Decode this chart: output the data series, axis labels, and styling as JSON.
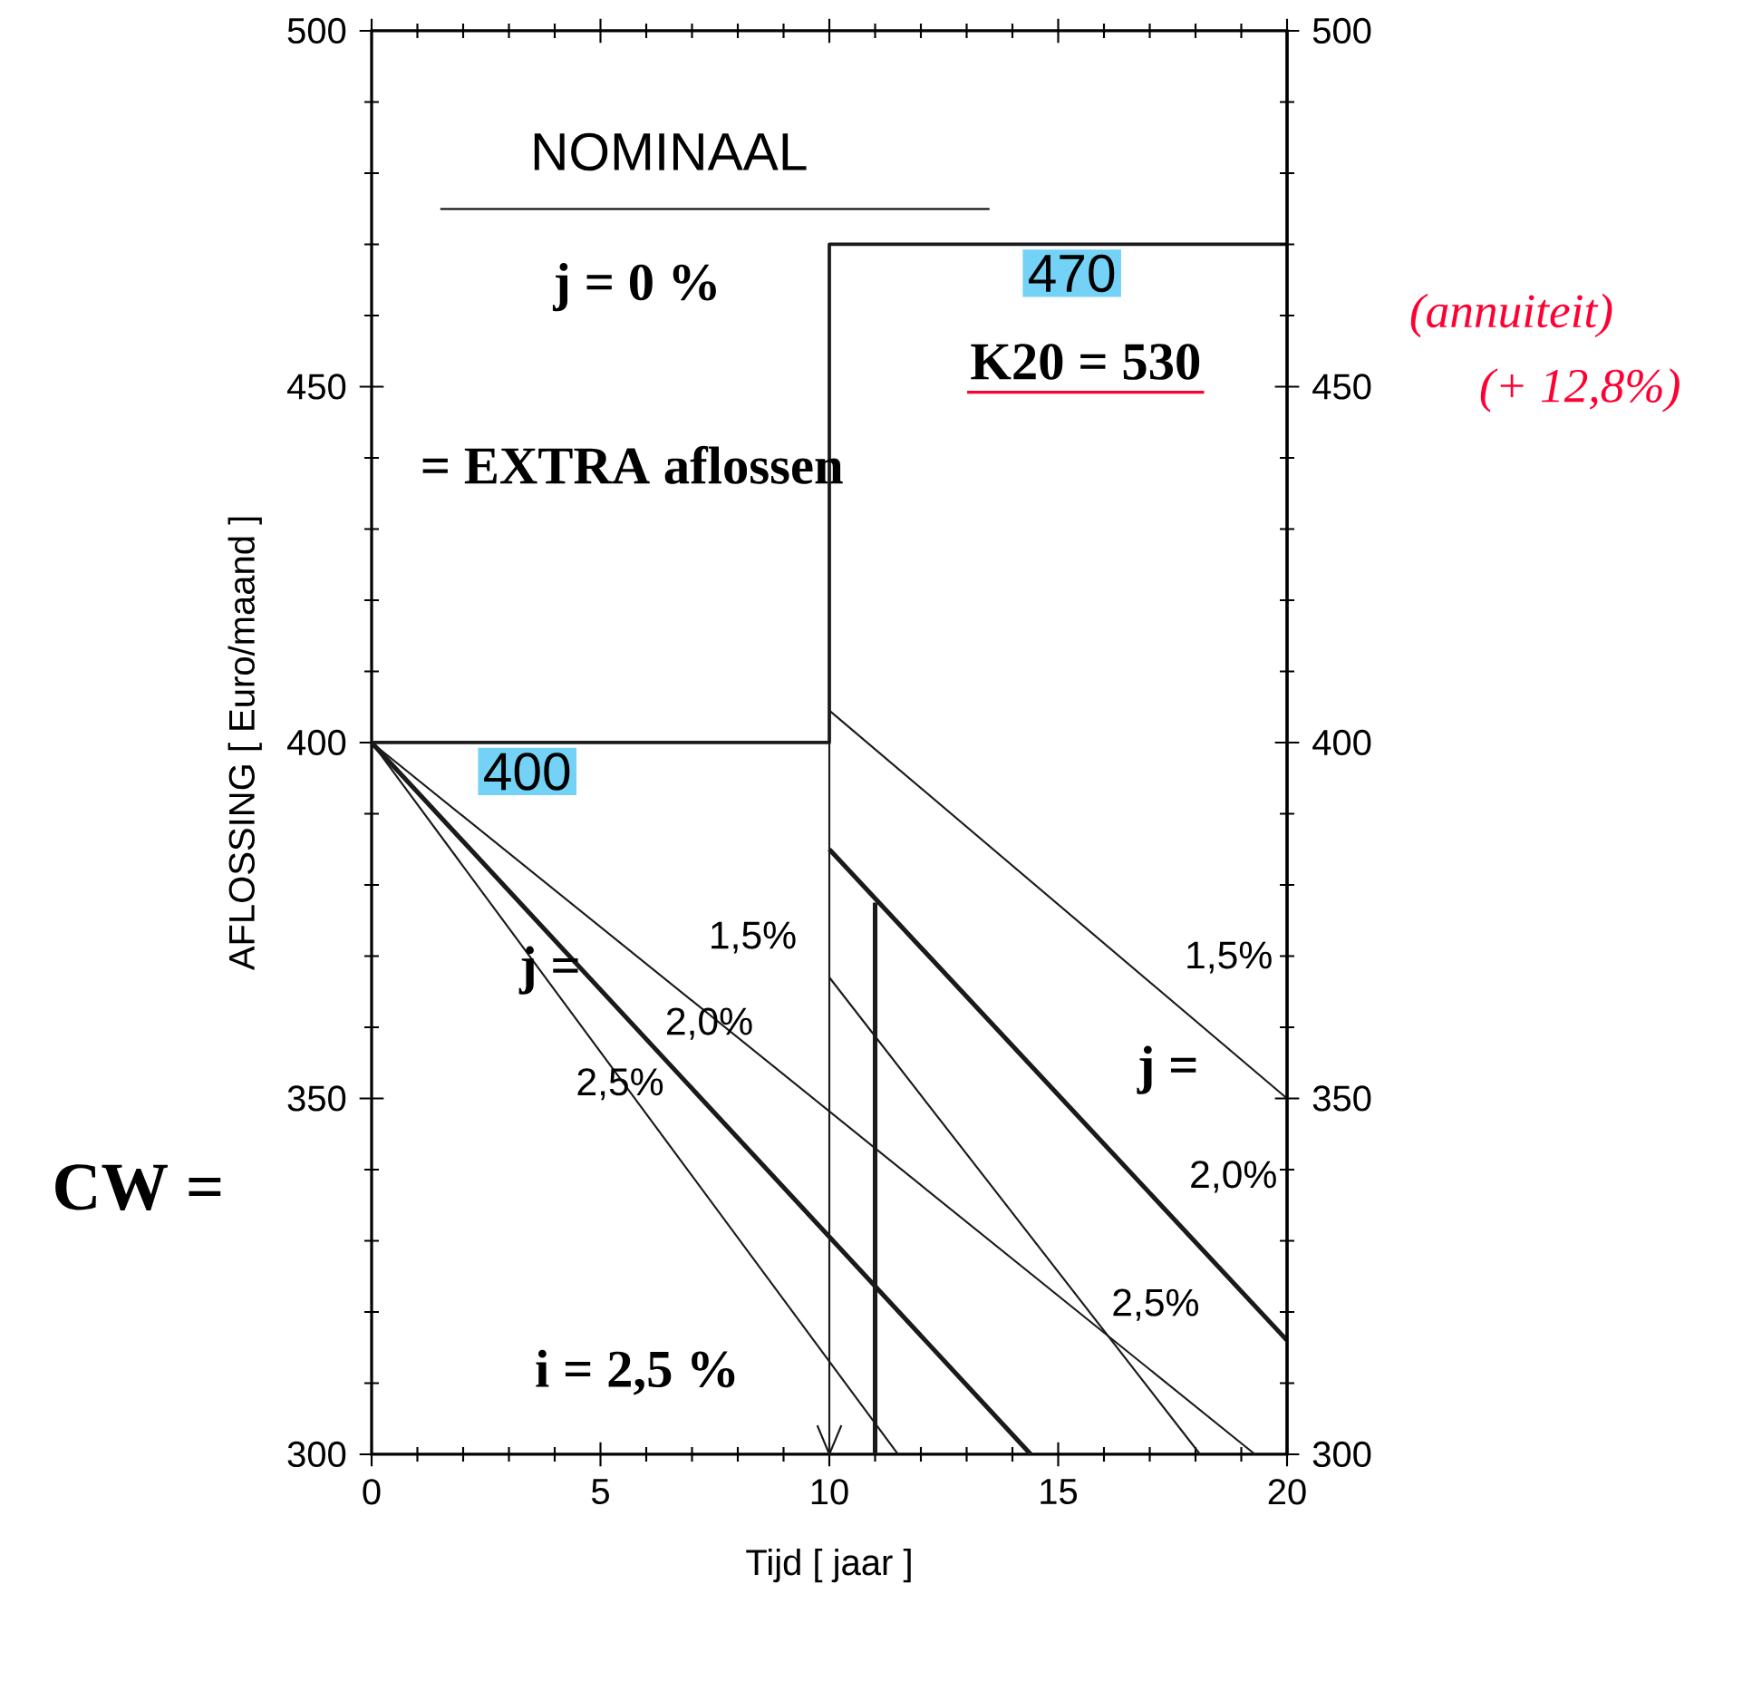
{
  "chart_data": {
    "type": "line",
    "xlabel": "Tijd  [  jaar  ]",
    "ylabel": "AFLOSSING  [  Euro/maand  ]",
    "xlim": [
      0,
      20
    ],
    "xticks": [
      0,
      {
        "value": 1,
        "label": null
      },
      {
        "value": 2,
        "label": null
      },
      {
        "value": 3,
        "label": null
      },
      {
        "value": 4,
        "label": null
      },
      5,
      {
        "value": 6,
        "label": null
      },
      {
        "value": 7,
        "label": null
      },
      {
        "value": 8,
        "label": null
      },
      {
        "value": 9,
        "label": null
      },
      10,
      {
        "value": 11,
        "label": null
      },
      {
        "value": 12,
        "label": null
      },
      {
        "value": 13,
        "label": null
      },
      {
        "value": 14,
        "label": null
      },
      15,
      {
        "value": 16,
        "label": null
      },
      {
        "value": 17,
        "label": null
      },
      {
        "value": 18,
        "label": null
      },
      {
        "value": 19,
        "label": null
      },
      20
    ],
    "ylim": [
      300,
      500
    ],
    "yticks": [
      300,
      {
        "value": 310,
        "label": null
      },
      {
        "value": 320,
        "label": null
      },
      {
        "value": 330,
        "label": null
      },
      {
        "value": 340,
        "label": null
      },
      350,
      {
        "value": 360,
        "label": null
      },
      {
        "value": 370,
        "label": null
      },
      {
        "value": 380,
        "label": null
      },
      {
        "value": 390,
        "label": null
      },
      400,
      {
        "value": 410,
        "label": null
      },
      {
        "value": 420,
        "label": null
      },
      {
        "value": 430,
        "label": null
      },
      {
        "value": 440,
        "label": null
      },
      450,
      {
        "value": 460,
        "label": null
      },
      {
        "value": 470,
        "label": null
      },
      {
        "value": 480,
        "label": null
      },
      {
        "value": 490,
        "label": null
      },
      500
    ],
    "y2lim": [
      300,
      500
    ],
    "y2ticks": [
      300,
      {
        "value": 310,
        "label": null
      },
      {
        "value": 320,
        "label": null
      },
      {
        "value": 330,
        "label": null
      },
      {
        "value": 340,
        "label": null
      },
      350,
      {
        "value": 360,
        "label": null
      },
      {
        "value": 370,
        "label": null
      },
      {
        "value": 380,
        "label": null
      },
      {
        "value": 390,
        "label": null
      },
      400,
      {
        "value": 410,
        "label": null
      },
      {
        "value": 420,
        "label": null
      },
      {
        "value": 430,
        "label": null
      },
      {
        "value": 440,
        "label": null
      },
      450,
      {
        "value": 460,
        "label": null
      },
      {
        "value": 470,
        "label": null
      },
      {
        "value": 480,
        "label": null
      },
      {
        "value": 490,
        "label": null
      },
      500
    ],
    "grid": false,
    "marker": "none",
    "line_style": "solid",
    "series": [
      {
        "color": "#1a1a1a",
        "x": [
          0,
          10,
          10,
          20
        ],
        "values": [
          400,
          400,
          470,
          470
        ]
      },
      {
        "name": "1,5%",
        "color": "#1a1a1a",
        "x": [
          0,
          19.3
        ],
        "values": [
          400,
          300
        ]
      },
      {
        "name": "2,0%",
        "color": "#1a1a1a",
        "x": [
          0,
          14.4
        ],
        "values": [
          400,
          300
        ]
      },
      {
        "name": "2,5%",
        "color": "#1a1a1a",
        "x": [
          0,
          11.5
        ],
        "values": [
          400,
          300
        ]
      },
      {
        "name": "1,5%",
        "color": "#1a1a1a",
        "x": [
          10,
          20
        ],
        "values": [
          404.5,
          350
        ]
      },
      {
        "name": "2,0%",
        "color": "#1a1a1a",
        "x": [
          10,
          20
        ],
        "values": [
          385,
          316
        ]
      },
      {
        "name": "2,5%",
        "color": "#1a1a1a",
        "x": [
          10,
          18.1
        ],
        "values": [
          367,
          300
        ]
      },
      {
        "color": "#1a1a1a",
        "x": [
          11,
          11
        ],
        "values": [
          377.5,
          300
        ]
      }
    ],
    "ref_lines": [
      {
        "axis": "x",
        "value": 10,
        "color": "#1a1a1a"
      }
    ],
    "annotations": [
      "NOMINAAL",
      "j = 0 %",
      "= EXTRA aflossen",
      "K20 = 530",
      "j =",
      "j =",
      "i = 2,5 %",
      "CW =",
      "(annuiteit)",
      "(+ 12,8%)",
      {
        "text": "400",
        "x": 3.4,
        "y": 400
      },
      {
        "text": "470",
        "x": 15.3,
        "y": 470
      }
    ]
  }
}
